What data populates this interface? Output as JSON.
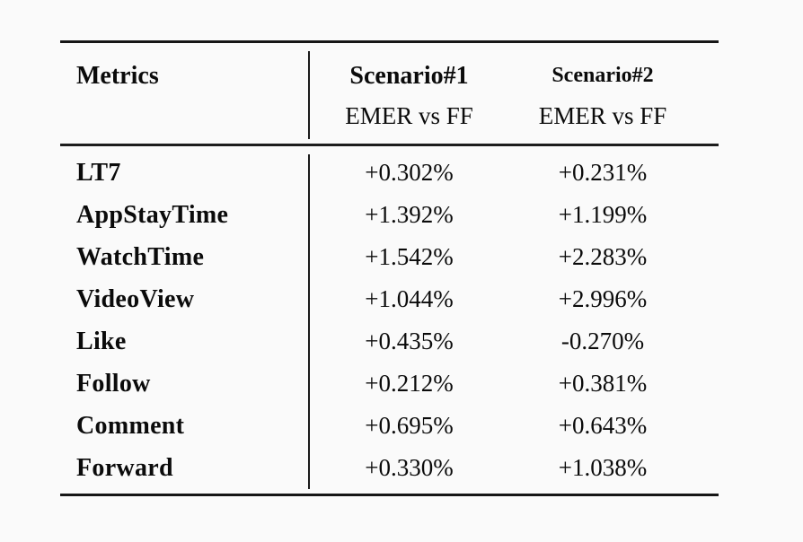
{
  "colors": {
    "background": "#fafafa",
    "text": "#0b0b0b",
    "rule": "#161616"
  },
  "table": {
    "columns": {
      "metrics_header": "Metrics",
      "scenario1": {
        "title": "Scenario#1",
        "subtitle": "EMER vs FF"
      },
      "scenario2": {
        "title": "Scenario#2",
        "subtitle": "EMER vs FF"
      }
    },
    "rows": [
      {
        "metric": "LT7",
        "scenario1": "+0.302%",
        "scenario2": "+0.231%"
      },
      {
        "metric": "AppStayTime",
        "scenario1": "+1.392%",
        "scenario2": "+1.199%"
      },
      {
        "metric": "WatchTime",
        "scenario1": "+1.542%",
        "scenario2": "+2.283%"
      },
      {
        "metric": "VideoView",
        "scenario1": "+1.044%",
        "scenario2": "+2.996%"
      },
      {
        "metric": "Like",
        "scenario1": "+0.435%",
        "scenario2": "-0.270%"
      },
      {
        "metric": "Follow",
        "scenario1": "+0.212%",
        "scenario2": "+0.381%"
      },
      {
        "metric": "Comment",
        "scenario1": "+0.695%",
        "scenario2": "+0.643%"
      },
      {
        "metric": "Forward",
        "scenario1": "+0.330%",
        "scenario2": "+1.038%"
      }
    ]
  },
  "chart_data": {
    "type": "table",
    "title": "",
    "columns": [
      "Metrics",
      "Scenario#1 EMER vs FF",
      "Scenario#2 EMER vs FF"
    ],
    "categories": [
      "LT7",
      "AppStayTime",
      "WatchTime",
      "VideoView",
      "Like",
      "Follow",
      "Comment",
      "Forward"
    ],
    "series": [
      {
        "name": "Scenario#1 EMER vs FF (%)",
        "values": [
          0.302,
          1.392,
          1.542,
          1.044,
          0.435,
          0.212,
          0.695,
          0.33
        ]
      },
      {
        "name": "Scenario#2 EMER vs FF (%)",
        "values": [
          0.231,
          1.199,
          2.283,
          2.996,
          -0.27,
          0.381,
          0.643,
          1.038
        ]
      }
    ]
  }
}
